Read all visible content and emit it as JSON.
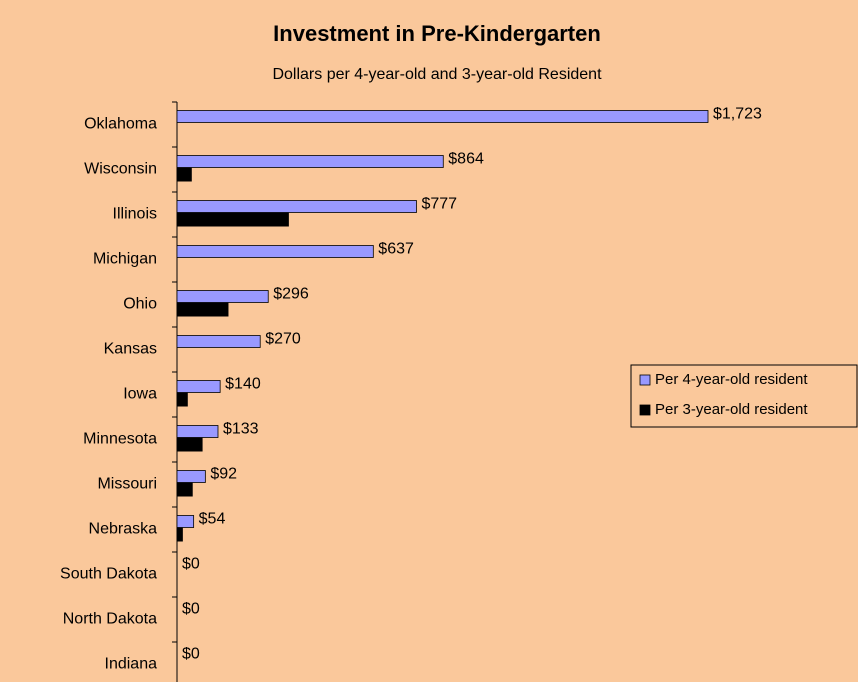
{
  "chart_data": {
    "type": "hbar",
    "title": "Investment in Pre-Kindergarten",
    "subtitle": "Dollars per 4-year-old and 3-year-old Resident",
    "categories": [
      "Oklahoma",
      "Wisconsin",
      "Illinois",
      "Michigan",
      "Ohio",
      "Kansas",
      "Iowa",
      "Minnesota",
      "Missouri",
      "Nebraska",
      "South Dakota",
      "North Dakota",
      "Indiana"
    ],
    "series": [
      {
        "name": "Per 4-year-old resident",
        "color": "#9999ff",
        "values": [
          1723,
          864,
          777,
          637,
          296,
          270,
          140,
          133,
          92,
          54,
          0,
          0,
          0
        ],
        "value_labels": [
          "$1,723",
          "$864",
          "$777",
          "$637",
          "$296",
          "$270",
          "$140",
          "$133",
          "$92",
          "$54",
          "$0",
          "$0",
          "$0"
        ]
      },
      {
        "name": "Per 3-year-old resident",
        "color": "#000000",
        "values": [
          0,
          48,
          363,
          0,
          167,
          0,
          35,
          83,
          51,
          19,
          0,
          0,
          0
        ]
      }
    ],
    "xlim": [
      0,
      2200
    ],
    "legend": "right"
  }
}
